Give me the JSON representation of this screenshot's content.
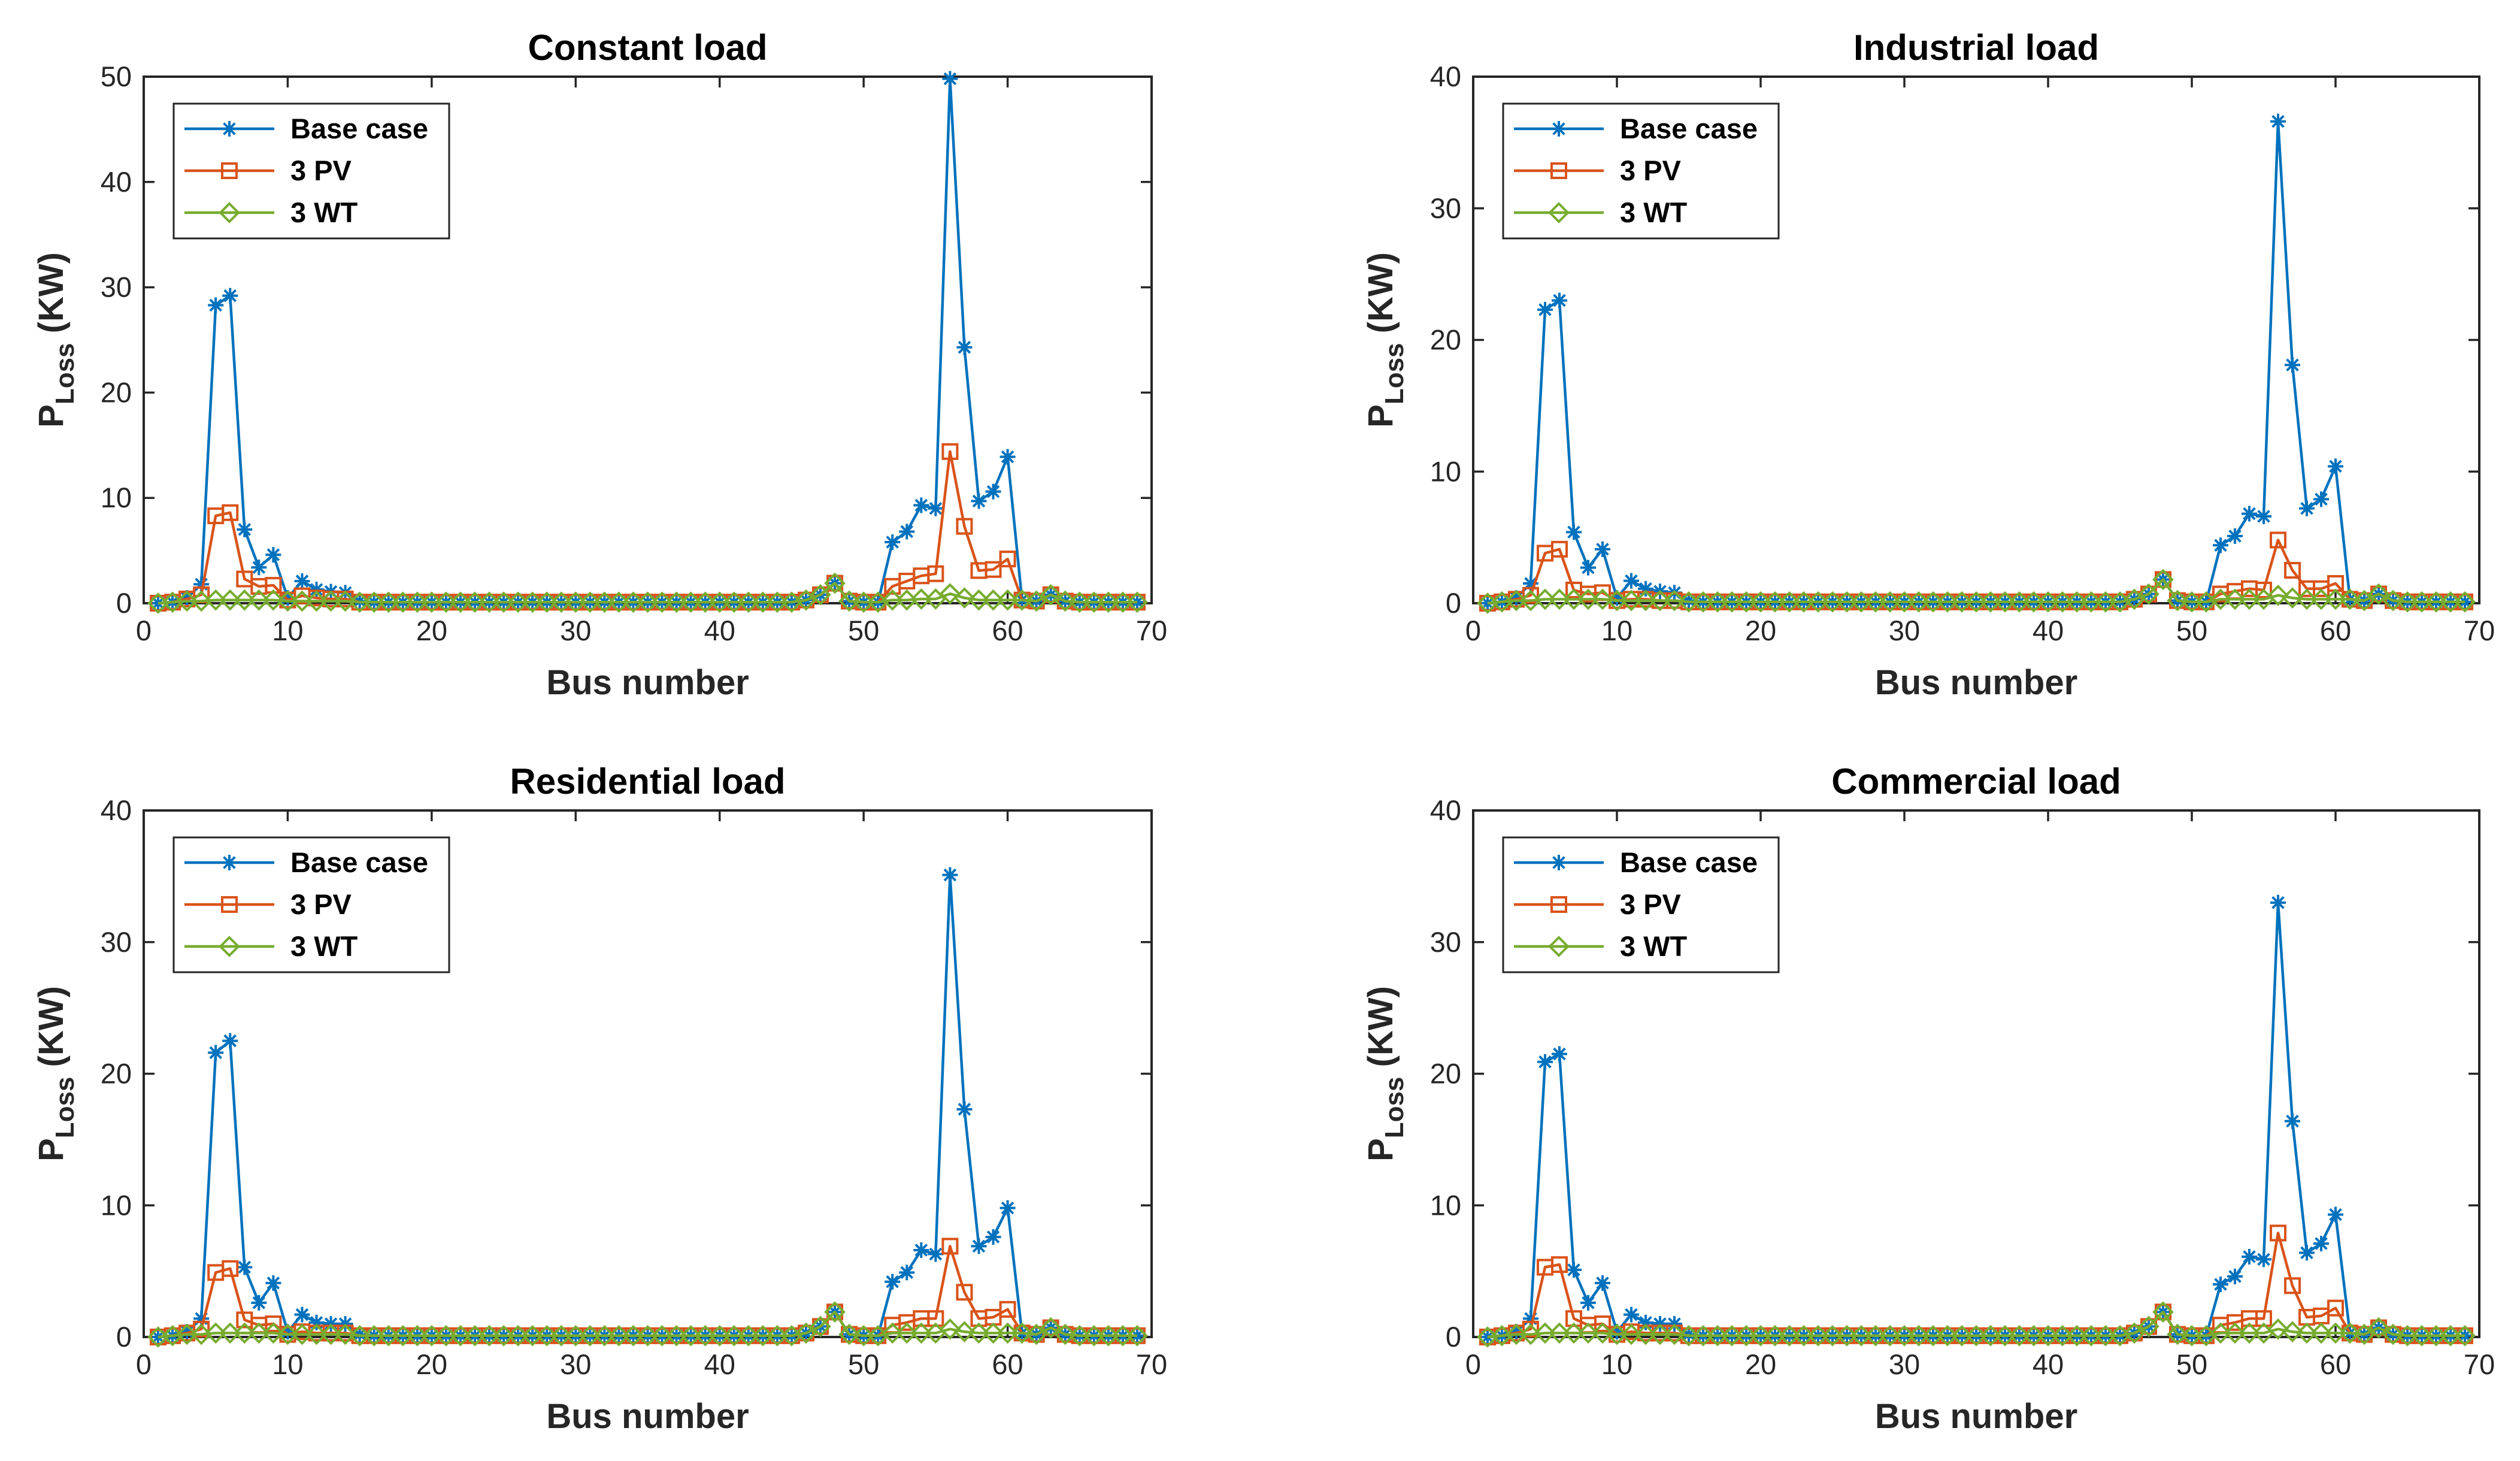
{
  "colors": {
    "base": "#0072BD",
    "pv": "#D95319",
    "wt": "#77AC30"
  },
  "chart_data": [
    {
      "type": "line",
      "title": "Constant load",
      "xlabel": "Bus number",
      "ylabel_main": "P",
      "ylabel_sub": "Loss",
      "ylabel_unit": " (KW)",
      "xlim": [
        0,
        70
      ],
      "ylim": [
        0,
        50
      ],
      "xticks": [
        0,
        10,
        20,
        30,
        40,
        50,
        60,
        70
      ],
      "yticks": [
        0,
        10,
        20,
        30,
        40,
        50
      ],
      "legend_position": "top-left",
      "series": [
        {
          "name": "Base case",
          "marker": "star",
          "color_key": "base",
          "values": [
            0,
            0.1,
            0.5,
            1.8,
            28.3,
            29.2,
            7,
            3.4,
            4.6,
            0.5,
            2.1,
            1.3,
            1.1,
            1,
            0.2,
            0.1,
            0.1,
            0.1,
            0.1,
            0.1,
            0.1,
            0.1,
            0.1,
            0.1,
            0.1,
            0.1,
            0.1,
            0.1,
            0.1,
            0.1,
            0.1,
            0.1,
            0.1,
            0.1,
            0.1,
            0.1,
            0.1,
            0.1,
            0.1,
            0.1,
            0.1,
            0.1,
            0.1,
            0.1,
            0.1,
            0.3,
            0.8,
            1.9,
            0.2,
            0.1,
            0.1,
            5.8,
            6.8,
            9.3,
            9,
            49.8,
            24.3,
            9.7,
            10.6,
            13.9,
            0.3,
            0.2,
            0.8,
            0.2,
            0.1,
            0.1,
            0.1,
            0.1,
            0.1
          ]
        },
        {
          "name": "3 PV",
          "marker": "square",
          "color_key": "pv",
          "values": [
            0,
            0.1,
            0.4,
            0.8,
            8.3,
            8.6,
            2.3,
            1.6,
            1.7,
            0.3,
            0.7,
            0.5,
            0.4,
            0.4,
            0.1,
            0.1,
            0.1,
            0.1,
            0.1,
            0.1,
            0.1,
            0.1,
            0.1,
            0.1,
            0.1,
            0.1,
            0.1,
            0.1,
            0.1,
            0.1,
            0.1,
            0.1,
            0.1,
            0.1,
            0.1,
            0.1,
            0.1,
            0.1,
            0.1,
            0.1,
            0.1,
            0.1,
            0.1,
            0.1,
            0.1,
            0.3,
            0.8,
            1.9,
            0.2,
            0.1,
            0.1,
            1.6,
            2.1,
            2.6,
            2.8,
            14.4,
            7.3,
            3.1,
            3.2,
            4.2,
            0.3,
            0.2,
            0.8,
            0.2,
            0.1,
            0.1,
            0.1,
            0.1,
            0.1
          ]
        },
        {
          "name": "3 WT",
          "marker": "diamond",
          "color_key": "wt",
          "values": [
            0,
            0.1,
            0.2,
            0.2,
            0.3,
            0.3,
            0.3,
            0.3,
            0.3,
            0.2,
            0.2,
            0.2,
            0.2,
            0.2,
            0.1,
            0.1,
            0.1,
            0.1,
            0.1,
            0.1,
            0.1,
            0.1,
            0.1,
            0.1,
            0.1,
            0.1,
            0.1,
            0.1,
            0.1,
            0.1,
            0.1,
            0.1,
            0.1,
            0.1,
            0.1,
            0.1,
            0.1,
            0.1,
            0.1,
            0.1,
            0.1,
            0.1,
            0.1,
            0.1,
            0.1,
            0.3,
            0.8,
            1.9,
            0.2,
            0.1,
            0.1,
            0.3,
            0.3,
            0.4,
            0.4,
            0.9,
            0.5,
            0.3,
            0.3,
            0.3,
            0.3,
            0.2,
            0.8,
            0.2,
            0.1,
            0.1,
            0.1,
            0.1,
            0.1
          ]
        }
      ]
    },
    {
      "type": "line",
      "title": "Industrial load",
      "xlabel": "Bus number",
      "ylabel_main": "P",
      "ylabel_sub": "Loss",
      "ylabel_unit": " (KW)",
      "xlim": [
        0,
        70
      ],
      "ylim": [
        0,
        40
      ],
      "xticks": [
        0,
        10,
        20,
        30,
        40,
        50,
        60,
        70
      ],
      "yticks": [
        0,
        10,
        20,
        30,
        40
      ],
      "legend_position": "top-left",
      "series": [
        {
          "name": "Base case",
          "marker": "star",
          "color_key": "base",
          "values": [
            0,
            0.1,
            0.4,
            1.5,
            22.3,
            23,
            5.4,
            2.7,
            4.1,
            0.4,
            1.7,
            1.1,
            0.9,
            0.8,
            0.2,
            0.1,
            0.1,
            0.1,
            0.1,
            0.1,
            0.1,
            0.1,
            0.1,
            0.1,
            0.1,
            0.1,
            0.1,
            0.1,
            0.1,
            0.1,
            0.1,
            0.1,
            0.1,
            0.1,
            0.1,
            0.1,
            0.1,
            0.1,
            0.1,
            0.1,
            0.1,
            0.1,
            0.1,
            0.1,
            0.1,
            0.3,
            0.7,
            1.8,
            0.2,
            0.1,
            0.1,
            4.4,
            5.1,
            6.8,
            6.6,
            36.6,
            18.1,
            7.2,
            7.9,
            10.4,
            0.3,
            0.2,
            0.7,
            0.2,
            0.1,
            0.1,
            0.1,
            0.1,
            0.1
          ]
        },
        {
          "name": "3 PV",
          "marker": "square",
          "color_key": "pv",
          "values": [
            0,
            0.1,
            0.3,
            0.6,
            3.8,
            4.1,
            1,
            0.7,
            0.8,
            0.2,
            0.3,
            0.3,
            0.2,
            0.2,
            0.1,
            0.1,
            0.1,
            0.1,
            0.1,
            0.1,
            0.1,
            0.1,
            0.1,
            0.1,
            0.1,
            0.1,
            0.1,
            0.1,
            0.1,
            0.1,
            0.1,
            0.1,
            0.1,
            0.1,
            0.1,
            0.1,
            0.1,
            0.1,
            0.1,
            0.1,
            0.1,
            0.1,
            0.1,
            0.1,
            0.1,
            0.3,
            0.7,
            1.8,
            0.2,
            0.1,
            0.1,
            0.7,
            0.9,
            1.1,
            1,
            4.8,
            2.5,
            1.1,
            1.1,
            1.5,
            0.3,
            0.2,
            0.7,
            0.2,
            0.1,
            0.1,
            0.1,
            0.1,
            0.1
          ]
        },
        {
          "name": "3 WT",
          "marker": "diamond",
          "color_key": "wt",
          "values": [
            0,
            0.1,
            0.2,
            0.2,
            0.3,
            0.3,
            0.3,
            0.3,
            0.3,
            0.2,
            0.2,
            0.2,
            0.2,
            0.2,
            0.1,
            0.1,
            0.1,
            0.1,
            0.1,
            0.1,
            0.1,
            0.1,
            0.1,
            0.1,
            0.1,
            0.1,
            0.1,
            0.1,
            0.1,
            0.1,
            0.1,
            0.1,
            0.1,
            0.1,
            0.1,
            0.1,
            0.1,
            0.1,
            0.1,
            0.1,
            0.1,
            0.1,
            0.1,
            0.1,
            0.1,
            0.3,
            0.7,
            1.8,
            0.2,
            0.1,
            0.1,
            0.3,
            0.3,
            0.3,
            0.3,
            0.6,
            0.4,
            0.3,
            0.3,
            0.3,
            0.3,
            0.2,
            0.7,
            0.2,
            0.1,
            0.1,
            0.1,
            0.1,
            0.1
          ]
        }
      ]
    },
    {
      "type": "line",
      "title": "Residential load",
      "xlabel": "Bus number",
      "ylabel_main": "P",
      "ylabel_sub": "Loss",
      "ylabel_unit": " (KW)",
      "xlim": [
        0,
        70
      ],
      "ylim": [
        0,
        40
      ],
      "xticks": [
        0,
        10,
        20,
        30,
        40,
        50,
        60,
        70
      ],
      "yticks": [
        0,
        10,
        20,
        30,
        40
      ],
      "legend_position": "top-left",
      "series": [
        {
          "name": "Base case",
          "marker": "star",
          "color_key": "base",
          "values": [
            0,
            0.1,
            0.4,
            1.4,
            21.6,
            22.5,
            5.3,
            2.6,
            4.1,
            0.4,
            1.7,
            1.1,
            1,
            1,
            0.2,
            0.1,
            0.1,
            0.1,
            0.1,
            0.1,
            0.1,
            0.1,
            0.1,
            0.1,
            0.1,
            0.1,
            0.1,
            0.1,
            0.1,
            0.1,
            0.1,
            0.1,
            0.1,
            0.1,
            0.1,
            0.1,
            0.1,
            0.1,
            0.1,
            0.1,
            0.1,
            0.1,
            0.1,
            0.1,
            0.1,
            0.3,
            0.8,
            1.9,
            0.2,
            0.1,
            0.1,
            4.2,
            4.9,
            6.6,
            6.3,
            35.1,
            17.3,
            6.9,
            7.6,
            9.8,
            0.3,
            0.2,
            0.7,
            0.2,
            0.1,
            0.1,
            0.1,
            0.1,
            0.1
          ]
        },
        {
          "name": "3 PV",
          "marker": "square",
          "color_key": "pv",
          "values": [
            0,
            0.1,
            0.3,
            0.6,
            4.9,
            5.2,
            1.3,
            0.9,
            1,
            0.2,
            0.4,
            0.3,
            0.3,
            0.3,
            0.1,
            0.1,
            0.1,
            0.1,
            0.1,
            0.1,
            0.1,
            0.1,
            0.1,
            0.1,
            0.1,
            0.1,
            0.1,
            0.1,
            0.1,
            0.1,
            0.1,
            0.1,
            0.1,
            0.1,
            0.1,
            0.1,
            0.1,
            0.1,
            0.1,
            0.1,
            0.1,
            0.1,
            0.1,
            0.1,
            0.1,
            0.3,
            0.8,
            1.9,
            0.2,
            0.1,
            0.1,
            0.9,
            1.1,
            1.4,
            1.4,
            6.9,
            3.4,
            1.4,
            1.5,
            2.1,
            0.3,
            0.2,
            0.7,
            0.2,
            0.1,
            0.1,
            0.1,
            0.1,
            0.1
          ]
        },
        {
          "name": "3 WT",
          "marker": "diamond",
          "color_key": "wt",
          "values": [
            0,
            0.1,
            0.2,
            0.2,
            0.3,
            0.3,
            0.3,
            0.3,
            0.3,
            0.2,
            0.2,
            0.2,
            0.2,
            0.2,
            0.1,
            0.1,
            0.1,
            0.1,
            0.1,
            0.1,
            0.1,
            0.1,
            0.1,
            0.1,
            0.1,
            0.1,
            0.1,
            0.1,
            0.1,
            0.1,
            0.1,
            0.1,
            0.1,
            0.1,
            0.1,
            0.1,
            0.1,
            0.1,
            0.1,
            0.1,
            0.1,
            0.1,
            0.1,
            0.1,
            0.1,
            0.3,
            0.8,
            1.9,
            0.2,
            0.1,
            0.1,
            0.3,
            0.3,
            0.3,
            0.3,
            0.6,
            0.4,
            0.3,
            0.3,
            0.3,
            0.3,
            0.2,
            0.7,
            0.2,
            0.1,
            0.1,
            0.1,
            0.1,
            0.1
          ]
        }
      ]
    },
    {
      "type": "line",
      "title": "Commercial load",
      "xlabel": "Bus number",
      "ylabel_main": "P",
      "ylabel_sub": "Loss",
      "ylabel_unit": " (KW)",
      "xlim": [
        0,
        70
      ],
      "ylim": [
        0,
        40
      ],
      "xticks": [
        0,
        10,
        20,
        30,
        40,
        50,
        60,
        70
      ],
      "yticks": [
        0,
        10,
        20,
        30,
        40
      ],
      "legend_position": "top-left",
      "series": [
        {
          "name": "Base case",
          "marker": "star",
          "color_key": "base",
          "values": [
            0,
            0.1,
            0.4,
            1.4,
            20.9,
            21.5,
            5.1,
            2.6,
            4.1,
            0.4,
            1.7,
            1.1,
            1,
            1,
            0.2,
            0.1,
            0.1,
            0.1,
            0.1,
            0.1,
            0.1,
            0.1,
            0.1,
            0.1,
            0.1,
            0.1,
            0.1,
            0.1,
            0.1,
            0.1,
            0.1,
            0.1,
            0.1,
            0.1,
            0.1,
            0.1,
            0.1,
            0.1,
            0.1,
            0.1,
            0.1,
            0.1,
            0.1,
            0.1,
            0.1,
            0.3,
            0.8,
            1.9,
            0.2,
            0.1,
            0.1,
            4,
            4.6,
            6.1,
            5.9,
            33,
            16.4,
            6.4,
            7.1,
            9.3,
            0.3,
            0.2,
            0.7,
            0.2,
            0.1,
            0.1,
            0.1,
            0.1,
            0.1
          ]
        },
        {
          "name": "3 PV",
          "marker": "square",
          "color_key": "pv",
          "values": [
            0,
            0.1,
            0.3,
            0.6,
            5.3,
            5.5,
            1.4,
            0.9,
            1,
            0.2,
            0.4,
            0.3,
            0.3,
            0.3,
            0.1,
            0.1,
            0.1,
            0.1,
            0.1,
            0.1,
            0.1,
            0.1,
            0.1,
            0.1,
            0.1,
            0.1,
            0.1,
            0.1,
            0.1,
            0.1,
            0.1,
            0.1,
            0.1,
            0.1,
            0.1,
            0.1,
            0.1,
            0.1,
            0.1,
            0.1,
            0.1,
            0.1,
            0.1,
            0.1,
            0.1,
            0.3,
            0.8,
            1.9,
            0.2,
            0.1,
            0.1,
            0.9,
            1.1,
            1.4,
            1.4,
            7.9,
            3.9,
            1.5,
            1.6,
            2.2,
            0.3,
            0.2,
            0.7,
            0.2,
            0.1,
            0.1,
            0.1,
            0.1,
            0.1
          ]
        },
        {
          "name": "3 WT",
          "marker": "diamond",
          "color_key": "wt",
          "values": [
            0,
            0.1,
            0.2,
            0.2,
            0.3,
            0.3,
            0.3,
            0.3,
            0.3,
            0.2,
            0.2,
            0.2,
            0.2,
            0.2,
            0.1,
            0.1,
            0.1,
            0.1,
            0.1,
            0.1,
            0.1,
            0.1,
            0.1,
            0.1,
            0.1,
            0.1,
            0.1,
            0.1,
            0.1,
            0.1,
            0.1,
            0.1,
            0.1,
            0.1,
            0.1,
            0.1,
            0.1,
            0.1,
            0.1,
            0.1,
            0.1,
            0.1,
            0.1,
            0.1,
            0.1,
            0.3,
            0.8,
            1.9,
            0.2,
            0.1,
            0.1,
            0.3,
            0.3,
            0.3,
            0.3,
            0.6,
            0.4,
            0.3,
            0.3,
            0.3,
            0.3,
            0.2,
            0.7,
            0.2,
            0.1,
            0.1,
            0.1,
            0.1,
            0.1
          ]
        }
      ]
    }
  ]
}
